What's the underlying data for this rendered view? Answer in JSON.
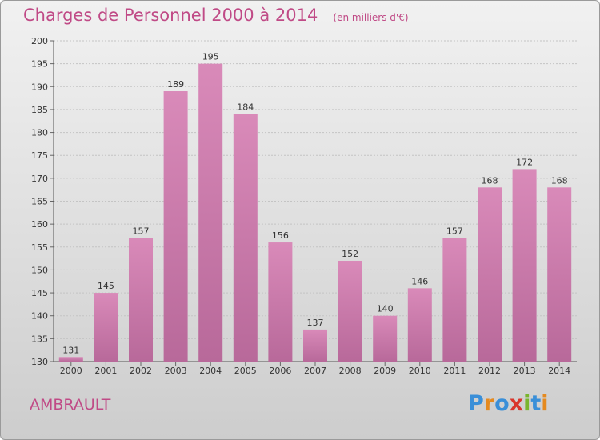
{
  "header": {
    "title": "Charges de Personnel 2000 à 2014",
    "subtitle": "(en milliers d'€)"
  },
  "footer": {
    "place": "AMBRAULT",
    "logo": {
      "text": "Proxiti",
      "letters": [
        {
          "ch": "P",
          "color": "#3a8fd8"
        },
        {
          "ch": "r",
          "color": "#e58a1f"
        },
        {
          "ch": "o",
          "color": "#3a8fd8"
        },
        {
          "ch": "x",
          "color": "#d9362c"
        },
        {
          "ch": "i",
          "color": "#7ab52e"
        },
        {
          "ch": "t",
          "color": "#3a8fd8"
        },
        {
          "ch": "i",
          "color": "#e58a1f"
        }
      ]
    }
  },
  "colors": {
    "bar": "#d98ab9",
    "bar_dark": "#b8699a",
    "text_accent": "#c04a86"
  },
  "chart_data": {
    "type": "bar",
    "title": "Charges de Personnel 2000 à 2014",
    "subtitle": "(en milliers d'€)",
    "xlabel": "",
    "ylabel": "",
    "categories": [
      "2000",
      "2001",
      "2002",
      "2003",
      "2004",
      "2005",
      "2006",
      "2007",
      "2008",
      "2009",
      "2010",
      "2011",
      "2012",
      "2013",
      "2014"
    ],
    "values": [
      131,
      145,
      157,
      189,
      195,
      184,
      156,
      137,
      152,
      140,
      146,
      157,
      168,
      172,
      168
    ],
    "ylim": [
      130,
      200
    ],
    "yticks": [
      130,
      135,
      140,
      145,
      150,
      155,
      160,
      165,
      170,
      175,
      180,
      185,
      190,
      195,
      200
    ],
    "grid": true,
    "data_labels": true
  }
}
